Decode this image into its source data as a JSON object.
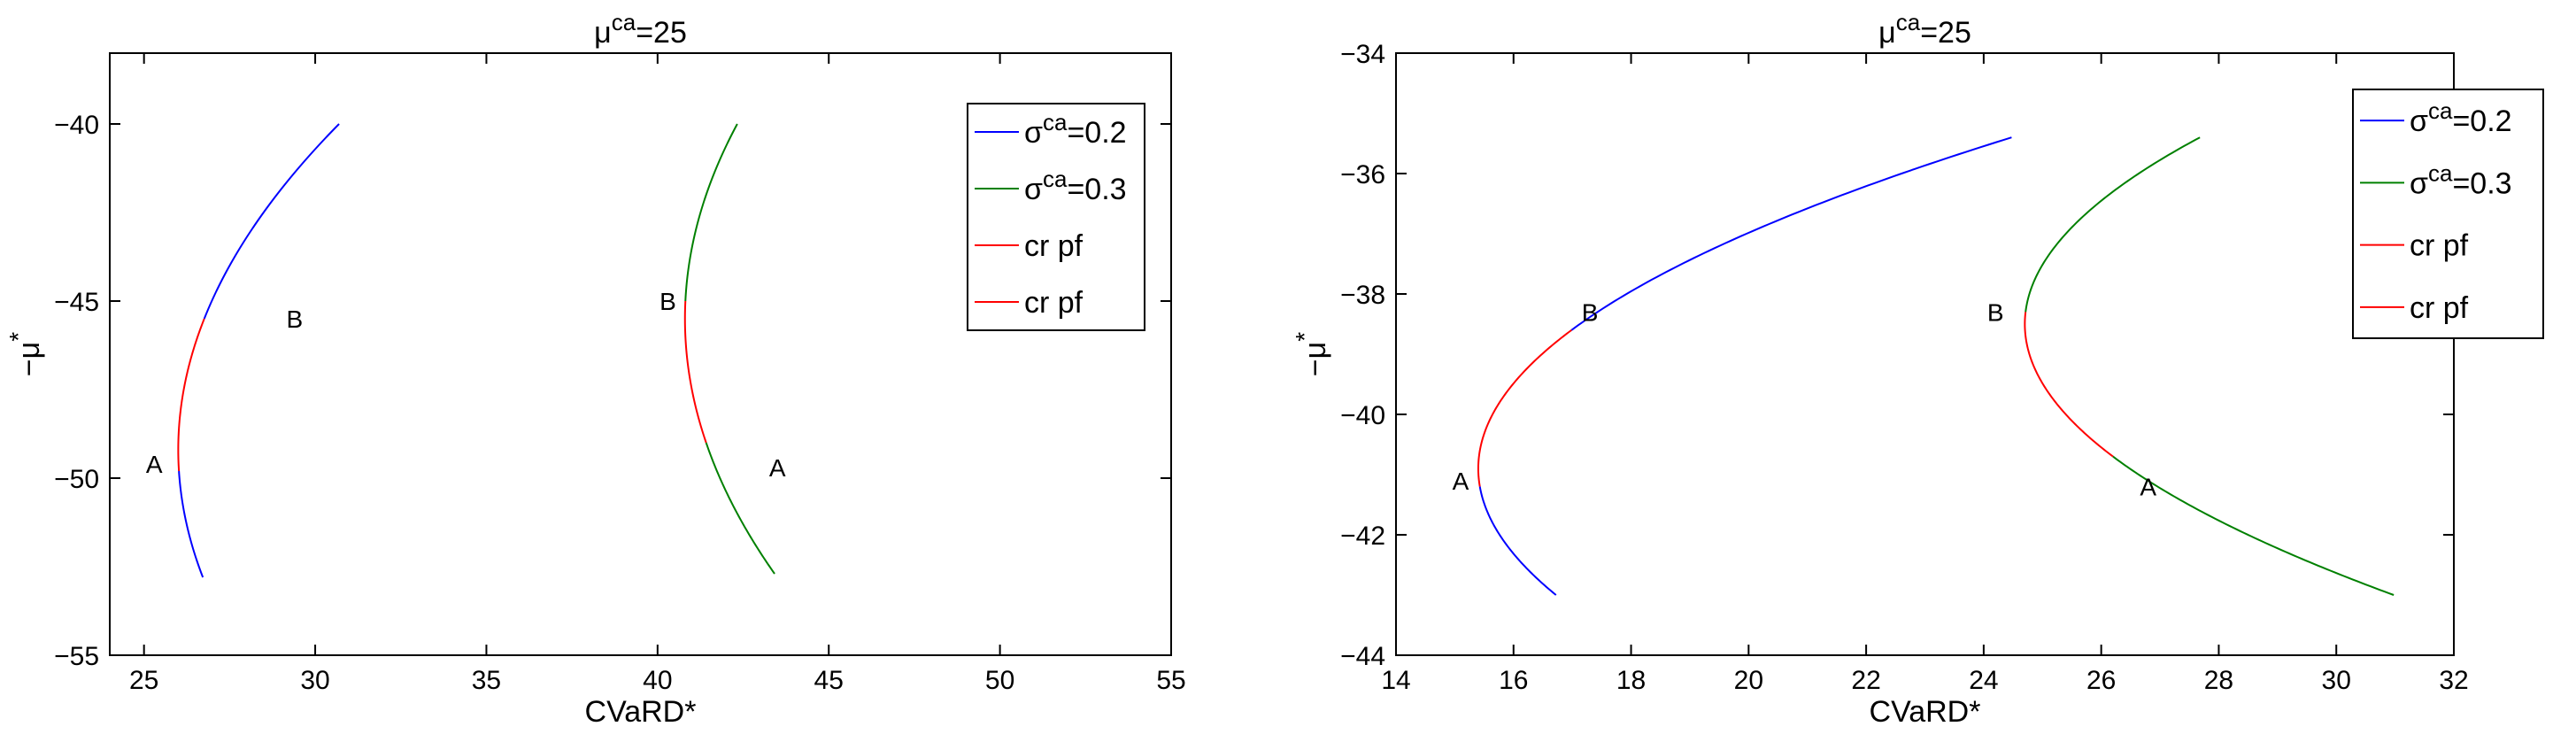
{
  "chart_data": [
    {
      "type": "line",
      "title": "μ^ca=25",
      "title_base": "μ",
      "title_sup": "ca",
      "title_rest": "=25",
      "xlabel": "CVaRD*",
      "ylabel": "−μ*",
      "ylabel_base": "−μ",
      "ylabel_sup": "*",
      "xlim": [
        24,
        55
      ],
      "ylim": [
        -55,
        -38
      ],
      "xticks": [
        25,
        30,
        35,
        40,
        45,
        50,
        55
      ],
      "yticks": [
        -55,
        -50,
        -45,
        -40
      ],
      "grid": false,
      "legend_position": "top-right",
      "legend": [
        {
          "base": "σ",
          "sup": "ca",
          "rest": "=0.2",
          "color": "#0000ff"
        },
        {
          "base": "σ",
          "sup": "ca",
          "rest": "=0.3",
          "color": "#008000"
        },
        {
          "base": "cr pf",
          "sup": "",
          "rest": "",
          "color": "#ff0000"
        },
        {
          "base": "cr pf",
          "sup": "",
          "rest": "",
          "color": "#ff0000"
        }
      ],
      "frontiers": [
        {
          "color_main": "#0000ff",
          "color_cr": "#ff0000",
          "vertex": [
            26.0,
            -49.2
          ],
          "k": 0.0555,
          "y_top": -40.0,
          "y_bottom": -52.8,
          "y_B": -45.5,
          "y_A": -49.8,
          "points": [
            {
              "label": "B",
              "x": 29.4,
              "y": -45.5
            },
            {
              "label": "A",
              "x": 25.3,
              "y": -49.6
            }
          ]
        },
        {
          "color_main": "#008000",
          "color_cr": "#ff0000",
          "vertex": [
            40.8,
            -45.5
          ],
          "k": 0.0505,
          "y_top": -40.0,
          "y_bottom": -52.7,
          "y_B": -45.0,
          "y_A": -49.0,
          "points": [
            {
              "label": "B",
              "x": 40.3,
              "y": -45.0
            },
            {
              "label": "A",
              "x": 43.5,
              "y": -49.7
            }
          ]
        }
      ]
    },
    {
      "type": "line",
      "title": "μ^ca=25",
      "title_base": "μ",
      "title_sup": "ca",
      "title_rest": "=25",
      "xlabel": "CVaRD*",
      "ylabel": "−μ*",
      "ylabel_base": "−μ",
      "ylabel_sup": "*",
      "xlim": [
        14,
        32
      ],
      "ylim": [
        -44,
        -34
      ],
      "xticks": [
        14,
        16,
        18,
        20,
        22,
        24,
        26,
        28,
        30,
        32
      ],
      "yticks": [
        -44,
        -42,
        -40,
        -38,
        -36,
        -34
      ],
      "grid": false,
      "legend_position": "top-right",
      "legend": [
        {
          "base": "σ",
          "sup": "ca",
          "rest": "=0.2",
          "color": "#0000ff"
        },
        {
          "base": "σ",
          "sup": "ca",
          "rest": "=0.3",
          "color": "#008000"
        },
        {
          "base": "cr pf",
          "sup": "",
          "rest": "",
          "color": "#ff0000"
        },
        {
          "base": "cr pf",
          "sup": "",
          "rest": "",
          "color": "#ff0000"
        }
      ],
      "frontiers": [
        {
          "color_main": "#0000ff",
          "color_cr": "#ff0000",
          "vertex": [
            15.4,
            -40.9
          ],
          "k": 0.3,
          "y_top": -35.4,
          "y_bottom": -43.0,
          "y_B": -38.6,
          "y_A": -41.2,
          "points": [
            {
              "label": "B",
              "x": 17.3,
              "y": -38.3
            },
            {
              "label": "A",
              "x": 15.1,
              "y": -41.1
            }
          ]
        },
        {
          "color_main": "#008000",
          "color_cr": "#ff0000",
          "vertex": [
            24.7,
            -38.5
          ],
          "k": 0.31,
          "y_top": -35.4,
          "y_bottom": -43.0,
          "y_B": -38.3,
          "y_A": -40.7,
          "points": [
            {
              "label": "B",
              "x": 24.2,
              "y": -38.3
            },
            {
              "label": "A",
              "x": 26.8,
              "y": -41.2
            }
          ]
        }
      ]
    }
  ]
}
